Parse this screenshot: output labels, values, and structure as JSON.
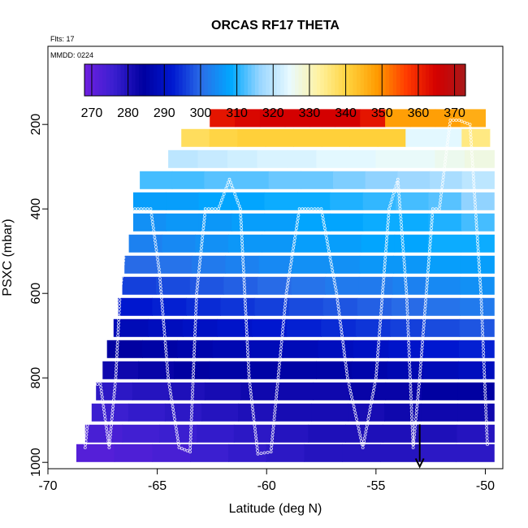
{
  "chart_data": {
    "type": "heatmap",
    "title": "ORCAS RF17 THETA",
    "flights_label": "Flts: 17",
    "date_label": "MMDD: 0224",
    "xlabel": "Latitude (deg N)",
    "ylabel": "PSXC (mbar)",
    "xlim": [
      -70,
      -49.2
    ],
    "ylim": [
      1015,
      15
    ],
    "x_ticks": [
      -70,
      -65,
      -60,
      -55,
      -50
    ],
    "y_ticks": [
      200,
      400,
      600,
      800,
      1000
    ],
    "colorbar": {
      "range": [
        268,
        373
      ],
      "ticks": [
        270,
        280,
        290,
        300,
        310,
        320,
        330,
        340,
        350,
        360,
        370
      ],
      "colors": [
        "#6f1fe0",
        "#3a1fd0",
        "#0000a0",
        "#0018d0",
        "#2a6ee8",
        "#00a8ff",
        "#9ad6ff",
        "#e8faff",
        "#fff2a0",
        "#ffd23c",
        "#ff9a00",
        "#ff3a00",
        "#d40000",
        "#a8181a"
      ]
    },
    "grid": false,
    "layers": [
      {
        "p": 978,
        "lat_min": -68.7,
        "lat_max": -49.6,
        "theta": [
          272,
          273,
          274,
          276,
          277,
          278,
          279,
          279,
          279,
          278,
          278
        ]
      },
      {
        "p": 932,
        "lat_min": -68.3,
        "lat_max": -49.6,
        "theta": [
          274,
          275,
          276,
          277,
          278,
          279,
          280,
          280,
          280,
          280,
          279
        ]
      },
      {
        "p": 882,
        "lat_min": -68.0,
        "lat_max": -49.6,
        "theta": [
          276,
          277,
          278,
          279,
          280,
          281,
          281,
          281,
          282,
          282,
          282
        ]
      },
      {
        "p": 832,
        "lat_min": -67.8,
        "lat_max": -49.6,
        "theta": [
          278,
          279,
          280,
          281,
          282,
          282,
          282,
          283,
          283,
          284,
          284
        ]
      },
      {
        "p": 782,
        "lat_min": -67.5,
        "lat_max": -49.6,
        "theta": [
          282,
          283,
          284,
          285,
          285,
          285,
          285,
          286,
          287,
          288,
          289
        ]
      },
      {
        "p": 732,
        "lat_min": -67.3,
        "lat_max": -49.6,
        "theta": [
          284,
          285,
          286,
          287,
          288,
          288,
          289,
          290,
          291,
          292,
          293
        ]
      },
      {
        "p": 682,
        "lat_min": -67.0,
        "lat_max": -49.6,
        "theta": [
          288,
          289,
          290,
          291,
          292,
          293,
          294,
          295,
          296,
          297,
          298
        ]
      },
      {
        "p": 632,
        "lat_min": -66.8,
        "lat_max": -49.6,
        "theta": [
          292,
          293,
          294,
          295,
          296,
          297,
          298,
          299,
          300,
          301,
          302
        ]
      },
      {
        "p": 582,
        "lat_min": -66.6,
        "lat_max": -49.6,
        "theta": [
          296,
          297,
          298,
          299,
          300,
          301,
          302,
          302,
          303,
          304,
          305
        ]
      },
      {
        "p": 532,
        "lat_min": -66.5,
        "lat_max": -49.6,
        "theta": [
          300,
          301,
          302,
          303,
          304,
          305,
          305,
          306,
          306,
          307,
          307
        ]
      },
      {
        "p": 482,
        "lat_min": -66.3,
        "lat_max": -49.6,
        "theta": [
          303,
          304,
          305,
          306,
          306,
          307,
          307,
          308,
          308,
          309,
          309
        ]
      },
      {
        "p": 432,
        "lat_min": -66.1,
        "lat_max": -49.6,
        "theta": [
          305,
          306,
          306,
          307,
          307,
          308,
          308,
          309,
          309,
          310,
          312
        ]
      },
      {
        "p": 382,
        "lat_min": -66.1,
        "lat_max": -49.6,
        "theta": [
          307,
          307,
          308,
          308,
          309,
          309,
          310,
          311,
          312,
          313,
          316
        ]
      },
      {
        "p": 332,
        "lat_min": -65.8,
        "lat_max": -49.6,
        "theta": [
          312,
          312,
          313,
          313,
          314,
          314,
          315,
          316,
          317,
          318,
          320
        ]
      },
      {
        "p": 282,
        "lat_min": -64.5,
        "lat_max": -49.6,
        "theta": [
          320,
          321,
          322,
          323,
          323,
          324,
          324,
          325,
          325,
          326,
          327
        ]
      },
      {
        "p": 232,
        "lat_min": -63.9,
        "lat_max": -49.8,
        "theta": [
          338,
          340,
          341,
          341,
          341,
          341,
          341,
          341,
          324,
          324,
          335
        ]
      },
      {
        "p": 185,
        "lat_min": -62.6,
        "lat_max": -50.0,
        "theta": [
          362,
          364,
          365,
          365,
          365,
          365,
          362,
          348,
          348,
          348,
          346
        ]
      }
    ],
    "flight_track": {
      "lat": [
        -68.3,
        -68.0,
        -67.6,
        -67.2,
        -66.9,
        -66.7,
        -66.3,
        -65.6,
        -65.3,
        -64.9,
        -64.5,
        -64.0,
        -63.5,
        -63.2,
        -62.8,
        -62.2,
        -61.7,
        -61.2,
        -60.8,
        -60.4,
        -59.8,
        -59.1,
        -58.5,
        -58.1,
        -57.5,
        -56.8,
        -56.3,
        -55.6,
        -55.0,
        -54.4,
        -54.0,
        -53.6,
        -53.3,
        -53.0,
        -52.7,
        -52.4,
        -52.1,
        -51.6,
        -51.2,
        -50.7,
        -50.2,
        -49.9
      ],
      "p": [
        965,
        815,
        815,
        965,
        800,
        600,
        400,
        400,
        400,
        550,
        800,
        965,
        975,
        600,
        400,
        400,
        330,
        400,
        800,
        980,
        975,
        600,
        400,
        400,
        400,
        600,
        800,
        965,
        800,
        400,
        330,
        600,
        965,
        800,
        600,
        400,
        400,
        190,
        190,
        200,
        600,
        965
      ],
      "marker": "open-circle"
    },
    "arrow_marker": {
      "lat": -53.0,
      "p": 1010,
      "direction": "down"
    }
  }
}
